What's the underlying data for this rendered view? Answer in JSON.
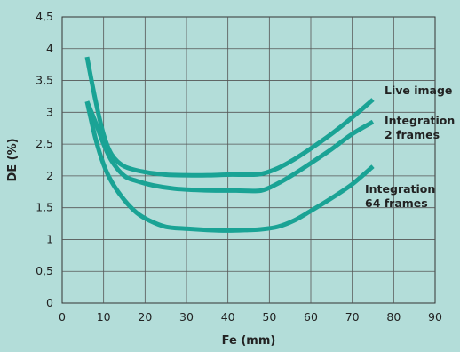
{
  "chart_data": {
    "type": "line",
    "title": "",
    "xlabel": "Fe (mm)",
    "ylabel": "DE (%)",
    "xlim": [
      0,
      90
    ],
    "ylim": [
      0,
      4.5
    ],
    "x_ticks": [
      "0",
      "10",
      "20",
      "30",
      "40",
      "50",
      "60",
      "70",
      "80",
      "90"
    ],
    "y_ticks": [
      "0",
      "0,5",
      "1",
      "1,5",
      "2",
      "2,5",
      "3",
      "3,5",
      "4",
      "4,5"
    ],
    "grid": true,
    "legend": "none",
    "series_color": "#1aa395",
    "series": [
      {
        "name": "Live image",
        "x": [
          6,
          8,
          10,
          12,
          15,
          20,
          25,
          30,
          35,
          40,
          45,
          48,
          52,
          56,
          60,
          65,
          70,
          75
        ],
        "y": [
          3.87,
          3.2,
          2.65,
          2.33,
          2.15,
          2.06,
          2.02,
          2.01,
          2.01,
          2.02,
          2.02,
          2.03,
          2.12,
          2.26,
          2.43,
          2.66,
          2.92,
          3.2
        ]
      },
      {
        "name": "Integration 2 frames",
        "label_lines": [
          "Integration",
          "2 frames"
        ],
        "x": [
          6,
          8,
          10,
          12,
          15,
          18,
          22,
          27,
          32,
          37,
          42,
          48,
          52,
          56,
          60,
          65,
          70,
          75
        ],
        "y": [
          3.17,
          2.85,
          2.5,
          2.23,
          2.0,
          1.92,
          1.85,
          1.8,
          1.78,
          1.77,
          1.77,
          1.77,
          1.88,
          2.03,
          2.2,
          2.42,
          2.66,
          2.85
        ]
      },
      {
        "name": "Integration 64 frames",
        "label_lines": [
          "Integration",
          "64  frames"
        ],
        "x": [
          6,
          8,
          10,
          12,
          15,
          18,
          21,
          25,
          30,
          35,
          40,
          45,
          48,
          52,
          56,
          60,
          65,
          70,
          75
        ],
        "y": [
          3.17,
          2.6,
          2.18,
          1.9,
          1.62,
          1.42,
          1.3,
          1.2,
          1.17,
          1.15,
          1.14,
          1.15,
          1.16,
          1.2,
          1.3,
          1.45,
          1.65,
          1.87,
          2.15
        ]
      }
    ]
  }
}
